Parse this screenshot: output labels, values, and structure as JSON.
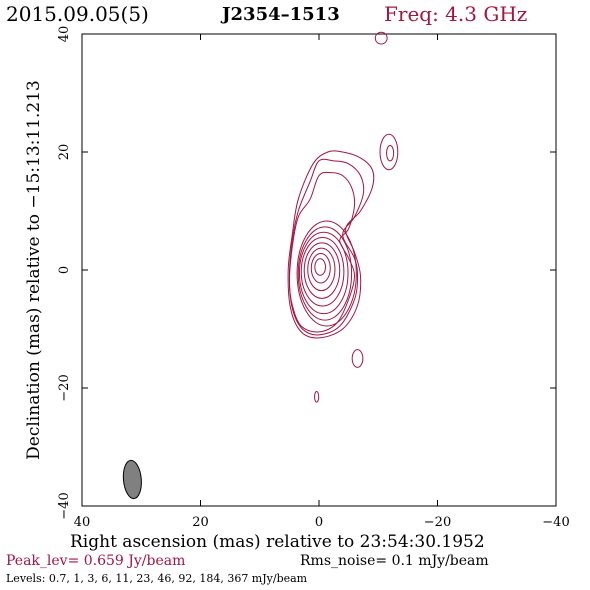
{
  "header": {
    "date": "2015.09.05(5)",
    "source": "J2354–1513",
    "frequency": "Freq: 4.3 GHz"
  },
  "chart_data": {
    "type": "contour",
    "xlabel": "Right ascension (mas) relative to 23:54:30.1952",
    "ylabel": "Declination (mas) relative to −15:13:11.213",
    "xlim": [
      40,
      -40
    ],
    "ylim": [
      -40,
      40
    ],
    "x_ticks": [
      40,
      20,
      0,
      -20,
      -40
    ],
    "y_ticks": [
      -40,
      -20,
      0,
      20,
      40
    ],
    "x_tick_labels": [
      "40",
      "20",
      "0",
      "−20",
      "−40"
    ],
    "y_tick_labels": [
      "−40",
      "−20",
      "0",
      "20",
      "40"
    ],
    "contour_color": "#a3163e",
    "beam": {
      "x": 31.5,
      "y": -35.5,
      "major_mas": 6.5,
      "minor_mas": 3.0,
      "pa_deg": 5,
      "fill": "#808080"
    },
    "core_contours": [
      {
        "cx": -0.2,
        "cy": 0.5,
        "rx": 0.9,
        "ry": 1.4
      },
      {
        "cx": -0.3,
        "cy": 0.3,
        "rx": 1.6,
        "ry": 2.5
      },
      {
        "cx": -0.4,
        "cy": 0.1,
        "rx": 2.3,
        "ry": 3.6
      },
      {
        "cx": -0.5,
        "cy": -0.1,
        "rx": 3.0,
        "ry": 4.7
      },
      {
        "cx": -0.6,
        "cy": -0.3,
        "rx": 3.6,
        "ry": 5.8
      },
      {
        "cx": -0.8,
        "cy": -0.5,
        "rx": 4.1,
        "ry": 6.9
      },
      {
        "cx": -1.0,
        "cy": -0.6,
        "rx": 4.5,
        "ry": 7.9
      },
      {
        "cx": -1.3,
        "cy": -0.6,
        "rx": 5.0,
        "ry": 8.9
      }
    ],
    "extended_contours": [
      [
        [
          -3.5,
          5
        ],
        [
          -5,
          7
        ],
        [
          -6,
          11
        ],
        [
          -5.5,
          14
        ],
        [
          -4,
          16
        ],
        [
          -2,
          16.5
        ],
        [
          0,
          16
        ],
        [
          1.5,
          12
        ],
        [
          3.5,
          9
        ],
        [
          4.5,
          4
        ],
        [
          5,
          -2
        ],
        [
          4.5,
          -6
        ],
        [
          3,
          -9.5
        ],
        [
          0,
          -10.5
        ],
        [
          -3,
          -9
        ],
        [
          -5,
          -5
        ],
        [
          -6,
          -1
        ],
        [
          -5,
          2
        ]
      ],
      [
        [
          -4,
          6
        ],
        [
          -6,
          9
        ],
        [
          -7.5,
          13
        ],
        [
          -7,
          16
        ],
        [
          -5,
          18
        ],
        [
          -2.5,
          18.5
        ],
        [
          0,
          18.5
        ],
        [
          1.5,
          15
        ],
        [
          3.5,
          10
        ],
        [
          4.5,
          5
        ],
        [
          5,
          -1
        ],
        [
          4.5,
          -6.5
        ],
        [
          2.8,
          -10
        ],
        [
          0,
          -11
        ],
        [
          -3.5,
          -9.5
        ],
        [
          -6,
          -5
        ],
        [
          -6.5,
          -1
        ],
        [
          -6,
          2
        ]
      ],
      [
        [
          -4.5,
          7
        ],
        [
          -7,
          10
        ],
        [
          -9,
          14
        ],
        [
          -9,
          17
        ],
        [
          -7,
          19
        ],
        [
          -4,
          20
        ],
        [
          -1.5,
          20
        ],
        [
          1,
          18
        ],
        [
          3.5,
          12
        ],
        [
          4.5,
          6
        ],
        [
          5.2,
          0
        ],
        [
          4.8,
          -6.5
        ],
        [
          3,
          -10.5
        ],
        [
          0,
          -11.5
        ],
        [
          -4,
          -10
        ],
        [
          -6.5,
          -6
        ],
        [
          -7,
          -1
        ],
        [
          -6,
          3
        ]
      ]
    ],
    "blobs": [
      {
        "cx": -11.8,
        "cy": 20,
        "rx": 1.5,
        "ry": 3.0
      },
      {
        "cx": -12.0,
        "cy": 19.8,
        "rx": 0.6,
        "ry": 1.3
      },
      {
        "cx": -10.5,
        "cy": 39.3,
        "rx": 1.0,
        "ry": 1.0
      },
      {
        "cx": -6.5,
        "cy": -15.0,
        "rx": 0.9,
        "ry": 1.5
      },
      {
        "cx": 0.4,
        "cy": -21.5,
        "rx": 0.35,
        "ry": 0.9
      }
    ]
  },
  "footer": {
    "peak": "Peak_lev=  0.659 Jy/beam",
    "rms": "Rms_noise=  0.1 mJy/beam",
    "levels": "Levels: 0.7,    1,    3,    6,   11,   23,   46,   92, 184, 367 mJy/beam"
  }
}
